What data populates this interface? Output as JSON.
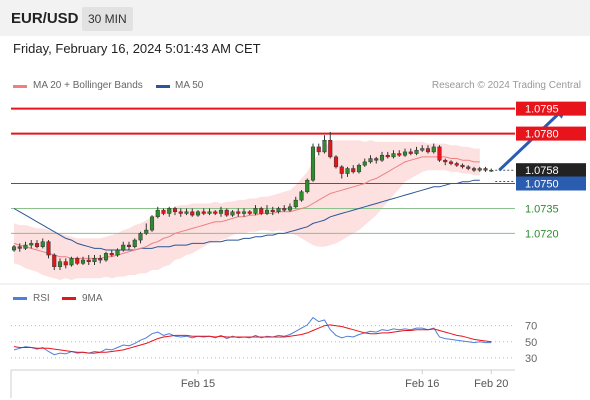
{
  "header": {
    "symbol": "EUR/USD",
    "timeframe": "30 MIN"
  },
  "timestamp": "Friday, February 16, 2024 5:01:43 AM CET",
  "legend": {
    "ma20_bb": "MA 20 + Bollinger Bands",
    "ma50": "MA 50",
    "copyright": "Research © 2024 Trading Central"
  },
  "indicator_legend": {
    "rsi": "RSI",
    "ma9": "9MA"
  },
  "colors": {
    "resistance": "#e8141c",
    "pivot": "#2a5db0",
    "support": "#2e8b2e",
    "ma20": "#f08080",
    "ma50": "#2b5797",
    "bollinger": "#fde0e0",
    "candle_up": "#2e8b2e",
    "candle_down": "#e8141c",
    "rsi": "#4f7fd8",
    "rsi_ma": "#e8141c",
    "forecast_arrow": "#2a5db0"
  },
  "chart_data": [
    {
      "type": "candlestick",
      "title": "EUR/USD 30 MIN",
      "ylim": [
        1.0695,
        1.0805
      ],
      "x_ticks": [
        "Feb 15",
        "Feb 16",
        "Feb 20"
      ],
      "key_levels": [
        {
          "label": "1.0795",
          "value": 1.0795,
          "kind": "resistance"
        },
        {
          "label": "1.0780",
          "value": 1.078,
          "kind": "resistance"
        },
        {
          "label": "1.0758",
          "value": 1.0758,
          "kind": "last_price"
        },
        {
          "label": "1.0750",
          "value": 1.075,
          "kind": "pivot"
        },
        {
          "label": "1.0735",
          "value": 1.0735,
          "kind": "support"
        },
        {
          "label": "1.0720",
          "value": 1.072,
          "kind": "support"
        }
      ],
      "candles": [
        [
          1.071,
          1.0712,
          1.0713,
          1.0709
        ],
        [
          1.0712,
          1.0711,
          1.0714,
          1.0709
        ],
        [
          1.0711,
          1.0713,
          1.0715,
          1.071
        ],
        [
          1.0713,
          1.0714,
          1.0716,
          1.0711
        ],
        [
          1.0714,
          1.0712,
          1.0716,
          1.0711
        ],
        [
          1.0712,
          1.0715,
          1.0717,
          1.0711
        ],
        [
          1.0715,
          1.0707,
          1.0716,
          1.0705
        ],
        [
          1.0707,
          1.07,
          1.0708,
          1.0698
        ],
        [
          1.07,
          1.0703,
          1.0705,
          1.0698
        ],
        [
          1.0703,
          1.0701,
          1.0705,
          1.0699
        ],
        [
          1.0701,
          1.0705,
          1.0706,
          1.07
        ],
        [
          1.0705,
          1.0702,
          1.0706,
          1.0701
        ],
        [
          1.0702,
          1.0704,
          1.0706,
          1.0701
        ],
        [
          1.0704,
          1.0703,
          1.0707,
          1.0701
        ],
        [
          1.0703,
          1.0705,
          1.0707,
          1.0701
        ],
        [
          1.0705,
          1.0704,
          1.0707,
          1.0702
        ],
        [
          1.0704,
          1.0708,
          1.0709,
          1.0703
        ],
        [
          1.0708,
          1.0707,
          1.071,
          1.0706
        ],
        [
          1.0707,
          1.071,
          1.0711,
          1.0706
        ],
        [
          1.071,
          1.0713,
          1.0715,
          1.0709
        ],
        [
          1.0713,
          1.0712,
          1.0715,
          1.071
        ],
        [
          1.0712,
          1.0716,
          1.0717,
          1.0711
        ],
        [
          1.0716,
          1.072,
          1.0721,
          1.0714
        ],
        [
          1.072,
          1.0722,
          1.0726,
          1.0719
        ],
        [
          1.0722,
          1.073,
          1.0731,
          1.0721
        ],
        [
          1.073,
          1.0734,
          1.0736,
          1.0729
        ],
        [
          1.0734,
          1.0732,
          1.0735,
          1.0731
        ],
        [
          1.0732,
          1.0735,
          1.0736,
          1.073
        ],
        [
          1.0735,
          1.0733,
          1.0736,
          1.0731
        ],
        [
          1.0733,
          1.0732,
          1.0735,
          1.073
        ],
        [
          1.0732,
          1.0733,
          1.0735,
          1.0731
        ],
        [
          1.0733,
          1.0731,
          1.0735,
          1.073
        ],
        [
          1.0731,
          1.0733,
          1.0734,
          1.073
        ],
        [
          1.0733,
          1.0732,
          1.0735,
          1.0731
        ],
        [
          1.0732,
          1.0733,
          1.0735,
          1.0731
        ],
        [
          1.0733,
          1.0732,
          1.0734,
          1.0731
        ],
        [
          1.0732,
          1.0734,
          1.0736,
          1.073
        ],
        [
          1.0734,
          1.0731,
          1.0735,
          1.073
        ],
        [
          1.0731,
          1.0733,
          1.0734,
          1.073
        ],
        [
          1.0733,
          1.0732,
          1.0735,
          1.073
        ],
        [
          1.0732,
          1.0733,
          1.0735,
          1.073
        ],
        [
          1.0733,
          1.0732,
          1.0734,
          1.0731
        ],
        [
          1.0732,
          1.0735,
          1.0737,
          1.0731
        ],
        [
          1.0735,
          1.0732,
          1.0736,
          1.0731
        ],
        [
          1.0732,
          1.0734,
          1.0737,
          1.0731
        ],
        [
          1.0734,
          1.0733,
          1.0736,
          1.0731
        ],
        [
          1.0733,
          1.0735,
          1.0736,
          1.0732
        ],
        [
          1.0735,
          1.0734,
          1.0737,
          1.0733
        ],
        [
          1.0734,
          1.0736,
          1.0738,
          1.0733
        ],
        [
          1.0736,
          1.074,
          1.0742,
          1.0735
        ],
        [
          1.074,
          1.0745,
          1.0746,
          1.0739
        ],
        [
          1.0745,
          1.0752,
          1.0753,
          1.0744
        ],
        [
          1.0752,
          1.0772,
          1.0774,
          1.0751
        ],
        [
          1.0772,
          1.0769,
          1.0774,
          1.0767
        ],
        [
          1.0769,
          1.0776,
          1.0779,
          1.0768
        ],
        [
          1.0776,
          1.0766,
          1.0781,
          1.0765
        ],
        [
          1.0766,
          1.076,
          1.0767,
          1.0759
        ],
        [
          1.076,
          1.0756,
          1.0761,
          1.0753
        ],
        [
          1.0756,
          1.0759,
          1.076,
          1.0754
        ],
        [
          1.0759,
          1.0757,
          1.0761,
          1.0756
        ],
        [
          1.0757,
          1.0761,
          1.0762,
          1.0756
        ],
        [
          1.0761,
          1.0763,
          1.0765,
          1.076
        ],
        [
          1.0763,
          1.0765,
          1.0767,
          1.0762
        ],
        [
          1.0765,
          1.0764,
          1.0766,
          1.0762
        ],
        [
          1.0764,
          1.0767,
          1.0769,
          1.0763
        ],
        [
          1.0767,
          1.0766,
          1.0769,
          1.0765
        ],
        [
          1.0766,
          1.0768,
          1.077,
          1.0765
        ],
        [
          1.0768,
          1.0767,
          1.077,
          1.0766
        ],
        [
          1.0767,
          1.0769,
          1.0771,
          1.0766
        ],
        [
          1.0769,
          1.0768,
          1.0771,
          1.0767
        ],
        [
          1.0768,
          1.077,
          1.0772,
          1.0767
        ],
        [
          1.077,
          1.0771,
          1.0773,
          1.0769
        ],
        [
          1.0771,
          1.0769,
          1.0773,
          1.0768
        ],
        [
          1.0769,
          1.0772,
          1.0774,
          1.0768
        ],
        [
          1.0772,
          1.0764,
          1.0773,
          1.0763
        ],
        [
          1.0764,
          1.0763,
          1.0765,
          1.0761
        ],
        [
          1.0763,
          1.0762,
          1.0764,
          1.0761
        ],
        [
          1.0762,
          1.0761,
          1.0763,
          1.076
        ],
        [
          1.0761,
          1.076,
          1.0762,
          1.0759
        ],
        [
          1.076,
          1.0759,
          1.0761,
          1.0758
        ],
        [
          1.0759,
          1.0758,
          1.076,
          1.0757
        ],
        [
          1.0758,
          1.0759,
          1.076,
          1.0757
        ],
        [
          1.0759,
          1.0758,
          1.076,
          1.0757
        ],
        [
          1.0758,
          1.0758,
          1.0759,
          1.0757
        ]
      ],
      "ma20": [
        1.0714,
        1.0713,
        1.0712,
        1.0711,
        1.071,
        1.0709,
        1.0708,
        1.0707,
        1.0706,
        1.0706,
        1.0705,
        1.0705,
        1.0705,
        1.0705,
        1.0705,
        1.0705,
        1.0706,
        1.0706,
        1.0707,
        1.0708,
        1.0709,
        1.071,
        1.0711,
        1.0712,
        1.0714,
        1.0715,
        1.0717,
        1.0718,
        1.072,
        1.0721,
        1.0722,
        1.0723,
        1.0724,
        1.0725,
        1.0726,
        1.0727,
        1.0727,
        1.0728,
        1.0729,
        1.073,
        1.073,
        1.0731,
        1.0731,
        1.0732,
        1.0732,
        1.0732,
        1.0733,
        1.0733,
        1.0733,
        1.0734,
        1.0735,
        1.0736,
        1.0738,
        1.074,
        1.0742,
        1.0744,
        1.0745,
        1.0746,
        1.0747,
        1.0748,
        1.0749,
        1.075,
        1.0752,
        1.0753,
        1.0755,
        1.0757,
        1.0759,
        1.0761,
        1.0763,
        1.0764,
        1.0765,
        1.0766,
        1.0766,
        1.0766,
        1.0766,
        1.0766,
        1.0765,
        1.0765,
        1.0764,
        1.0764,
        1.0763,
        1.0763
      ],
      "ma50": [
        1.0735,
        1.0733,
        1.0731,
        1.0729,
        1.0727,
        1.0725,
        1.0723,
        1.0721,
        1.0719,
        1.0717,
        1.0716,
        1.0714,
        1.0713,
        1.0712,
        1.0711,
        1.0711,
        1.071,
        1.071,
        1.071,
        1.071,
        1.071,
        1.071,
        1.0711,
        1.0711,
        1.0711,
        1.0712,
        1.0712,
        1.0712,
        1.0713,
        1.0713,
        1.0713,
        1.0714,
        1.0714,
        1.0714,
        1.0715,
        1.0715,
        1.0715,
        1.0716,
        1.0716,
        1.0716,
        1.0717,
        1.0717,
        1.0718,
        1.0718,
        1.0719,
        1.0719,
        1.072,
        1.072,
        1.0721,
        1.0722,
        1.0723,
        1.0724,
        1.0726,
        1.0727,
        1.0728,
        1.073,
        1.0731,
        1.0732,
        1.0733,
        1.0734,
        1.0735,
        1.0736,
        1.0737,
        1.0738,
        1.0739,
        1.074,
        1.0741,
        1.0742,
        1.0743,
        1.0744,
        1.0745,
        1.0746,
        1.0747,
        1.0748,
        1.0748,
        1.0749,
        1.075,
        1.075,
        1.0751,
        1.0751,
        1.0752,
        1.0752
      ],
      "bb_width": [
        0.0012,
        0.0012,
        0.0013,
        0.0013,
        0.0013,
        0.0014,
        0.0014,
        0.0014,
        0.0014,
        0.0013,
        0.0013,
        0.0012,
        0.0012,
        0.0012,
        0.0012,
        0.0012,
        0.0012,
        0.0013,
        0.0013,
        0.0014,
        0.0014,
        0.0015,
        0.0015,
        0.0016,
        0.0016,
        0.0017,
        0.0017,
        0.0017,
        0.0016,
        0.0016,
        0.0015,
        0.0015,
        0.0014,
        0.0013,
        0.0012,
        0.0012,
        0.0011,
        0.0011,
        0.001,
        0.001,
        0.001,
        0.001,
        0.001,
        0.001,
        0.001,
        0.0011,
        0.0011,
        0.0012,
        0.0013,
        0.0015,
        0.0018,
        0.0021,
        0.0025,
        0.0028,
        0.003,
        0.0031,
        0.0031,
        0.003,
        0.0029,
        0.0028,
        0.0027,
        0.0025,
        0.0024,
        0.0022,
        0.002,
        0.0018,
        0.0016,
        0.0014,
        0.0012,
        0.0011,
        0.001,
        0.0009,
        0.0008,
        0.0008,
        0.0008,
        0.0008,
        0.0008,
        0.0008,
        0.0008,
        0.0008,
        0.0008,
        0.0008
      ],
      "forecast": {
        "from": 1.0758,
        "to": 1.0795,
        "steps": 14
      }
    },
    {
      "type": "line",
      "series": [
        {
          "name": "RSI",
          "values": [
            40,
            42,
            44,
            43,
            41,
            43,
            38,
            34,
            36,
            35,
            38,
            36,
            37,
            36,
            38,
            37,
            41,
            40,
            43,
            46,
            45,
            48,
            52,
            55,
            60,
            62,
            58,
            60,
            57,
            56,
            57,
            55,
            57,
            56,
            57,
            55,
            58,
            54,
            57,
            55,
            56,
            55,
            58,
            55,
            57,
            56,
            58,
            57,
            59,
            63,
            67,
            71,
            80,
            75,
            77,
            65,
            58,
            55,
            57,
            56,
            59,
            61,
            63,
            62,
            65,
            64,
            66,
            65,
            66,
            65,
            67,
            67,
            65,
            67,
            56,
            54,
            53,
            52,
            51,
            50,
            49,
            50,
            49,
            49
          ]
        },
        {
          "name": "9MA",
          "values": [
            44,
            43,
            43,
            43,
            42,
            42,
            42,
            41,
            40,
            39,
            38,
            37,
            37,
            36,
            36,
            37,
            37,
            38,
            39,
            40,
            42,
            44,
            46,
            48,
            51,
            54,
            56,
            57,
            58,
            58,
            58,
            57,
            57,
            57,
            57,
            56,
            57,
            56,
            56,
            56,
            56,
            56,
            56,
            56,
            56,
            56,
            56,
            56,
            57,
            58,
            59,
            61,
            64,
            67,
            70,
            71,
            70,
            69,
            67,
            65,
            63,
            61,
            60,
            60,
            61,
            61,
            62,
            63,
            64,
            64,
            65,
            65,
            65,
            66,
            64,
            62,
            60,
            58,
            57,
            55,
            53,
            52,
            51,
            50
          ]
        }
      ],
      "y_ticks": [
        "70",
        "50",
        "30"
      ],
      "ylim": [
        20,
        82
      ]
    }
  ]
}
